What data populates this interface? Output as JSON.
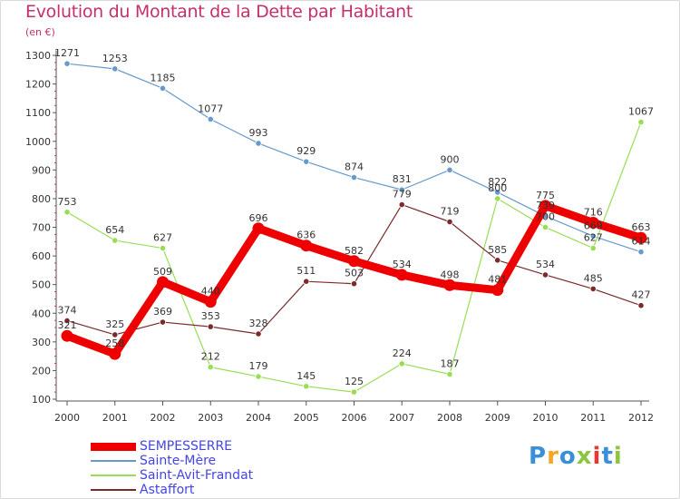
{
  "header": {
    "title": "Evolution du Montant de la Dette par Habitant",
    "unit": "(en €)"
  },
  "chart_data": {
    "type": "line",
    "title": "Evolution du Montant de la Dette par Habitant",
    "ylabel": "(en €)",
    "xlabel": "",
    "x": [
      "2000",
      "2001",
      "2002",
      "2003",
      "2004",
      "2005",
      "2006",
      "2007",
      "2008",
      "2009",
      "2010",
      "2011",
      "2012"
    ],
    "ylim": [
      100,
      1300
    ],
    "yticks": [
      100,
      200,
      300,
      400,
      500,
      600,
      700,
      800,
      900,
      1000,
      1100,
      1200,
      1300
    ],
    "grid": false,
    "legend_position": "bottom-left",
    "series": [
      {
        "name": "SEMPESSERRE",
        "color": "#ee0000",
        "values": [
          321,
          258,
          509,
          440,
          696,
          636,
          582,
          534,
          498,
          481,
          775,
          716,
          663
        ],
        "labels": [
          "321",
          "258",
          "509",
          "440",
          "696",
          "636",
          "582",
          "534",
          "498",
          "481",
          "775",
          "716",
          "663"
        ]
      },
      {
        "name": "Sainte-Mère",
        "color": "#6699cc",
        "values": [
          1271,
          1253,
          1185,
          1077,
          993,
          929,
          874,
          831,
          900,
          822,
          739,
          669,
          614
        ],
        "labels": [
          "1271",
          "1253",
          "1185",
          "1077",
          "993",
          "929",
          "874",
          "831",
          "900",
          "822",
          "739",
          "669",
          "614"
        ]
      },
      {
        "name": "Saint-Avit-Frandat",
        "color": "#99dd55",
        "values": [
          753,
          654,
          627,
          212,
          179,
          145,
          125,
          224,
          187,
          800,
          700,
          627,
          1067
        ],
        "labels": [
          "753",
          "654",
          "627",
          "212",
          "179",
          "145",
          "125",
          "224",
          "187",
          "800",
          "700",
          "627",
          "1067"
        ]
      },
      {
        "name": "Astaffort",
        "color": "#7a2a2a",
        "values": [
          374,
          325,
          369,
          353,
          328,
          511,
          503,
          779,
          719,
          585,
          534,
          485,
          427
        ],
        "labels": [
          "374",
          "325",
          "369",
          "353",
          "328",
          "511",
          "503",
          "779",
          "719",
          "585",
          "534",
          "485",
          "427"
        ]
      }
    ]
  },
  "logo": {
    "letters": [
      "P",
      "r",
      "o",
      "x",
      "i",
      "t",
      "i"
    ],
    "colors": [
      "#3a8fd9",
      "#f5a623",
      "#3a8fd9",
      "#8cc63f",
      "#e53935",
      "#3a8fd9",
      "#8cc63f"
    ]
  }
}
